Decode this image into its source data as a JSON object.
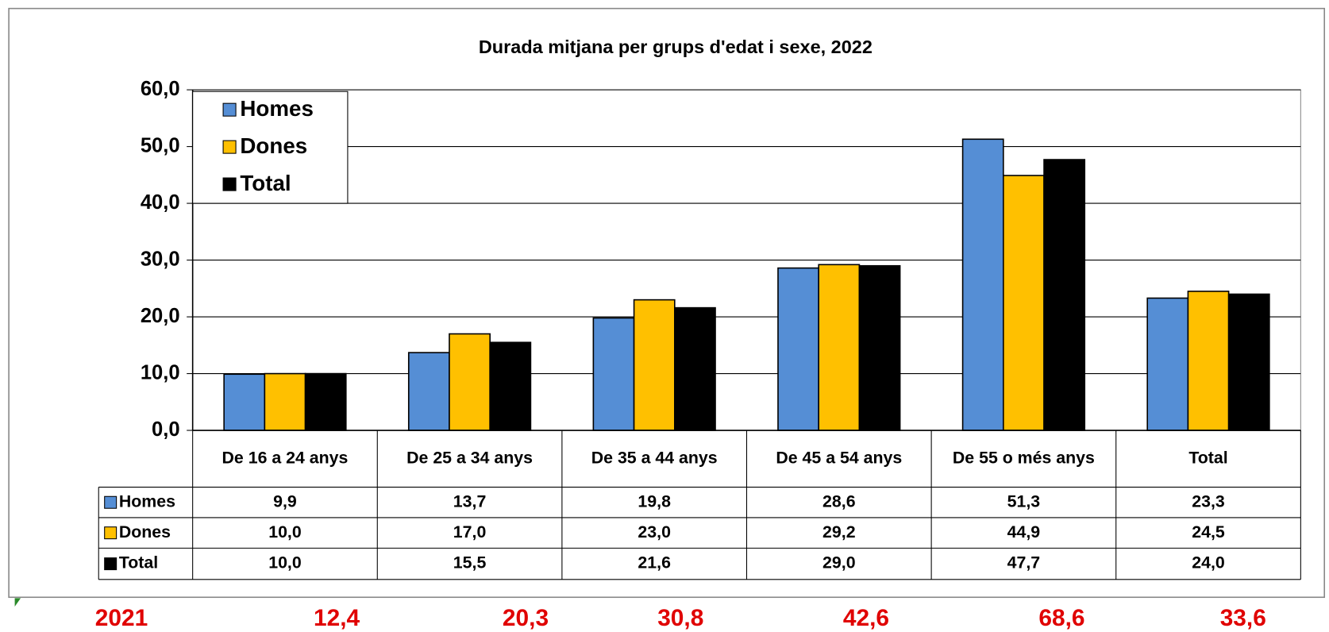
{
  "chart_data": {
    "type": "bar",
    "title": "Durada mitjana per grups d'edat i sexe, 2022",
    "categories": [
      "De 16 a 24 anys",
      "De 25 a 34 anys",
      "De 35 a 44 anys",
      "De 45 a 54 anys",
      "De 55 o més anys",
      "Total"
    ],
    "series": [
      {
        "name": "Homes",
        "color": "#558ed5",
        "values": [
          9.9,
          13.7,
          19.8,
          28.6,
          51.3,
          23.3
        ],
        "value_labels": [
          "9,9",
          "13,7",
          "19,8",
          "28,6",
          "51,3",
          "23,3"
        ]
      },
      {
        "name": "Dones",
        "color": "#ffc000",
        "values": [
          10.0,
          17.0,
          23.0,
          29.2,
          44.9,
          24.5
        ],
        "value_labels": [
          "10,0",
          "17,0",
          "23,0",
          "29,2",
          "44,9",
          "24,5"
        ]
      },
      {
        "name": "Total",
        "color": "#000000",
        "values": [
          10.0,
          15.5,
          21.6,
          29.0,
          47.7,
          24.0
        ],
        "value_labels": [
          "10,0",
          "15,5",
          "21,6",
          "29,0",
          "47,7",
          "24,0"
        ]
      }
    ],
    "ylim": [
      0,
      60
    ],
    "yticks": [
      {
        "value": 0,
        "label": "0,0"
      },
      {
        "value": 10,
        "label": "10,0"
      },
      {
        "value": 20,
        "label": "20,0"
      },
      {
        "value": 30,
        "label": "30,0"
      },
      {
        "value": 40,
        "label": "40,0"
      },
      {
        "value": 50,
        "label": "50,0"
      },
      {
        "value": 60,
        "label": "60,0"
      }
    ],
    "grid": true,
    "legend": "top-left",
    "data_table": true
  },
  "extra_row": {
    "label": "2021",
    "values": [
      12.4,
      20.3,
      30.8,
      42.6,
      68.6,
      33.6
    ],
    "value_labels": [
      "12,4",
      "20,3",
      "30,8",
      "42,6",
      "68,6",
      "33,6"
    ],
    "color": "#e00000"
  }
}
